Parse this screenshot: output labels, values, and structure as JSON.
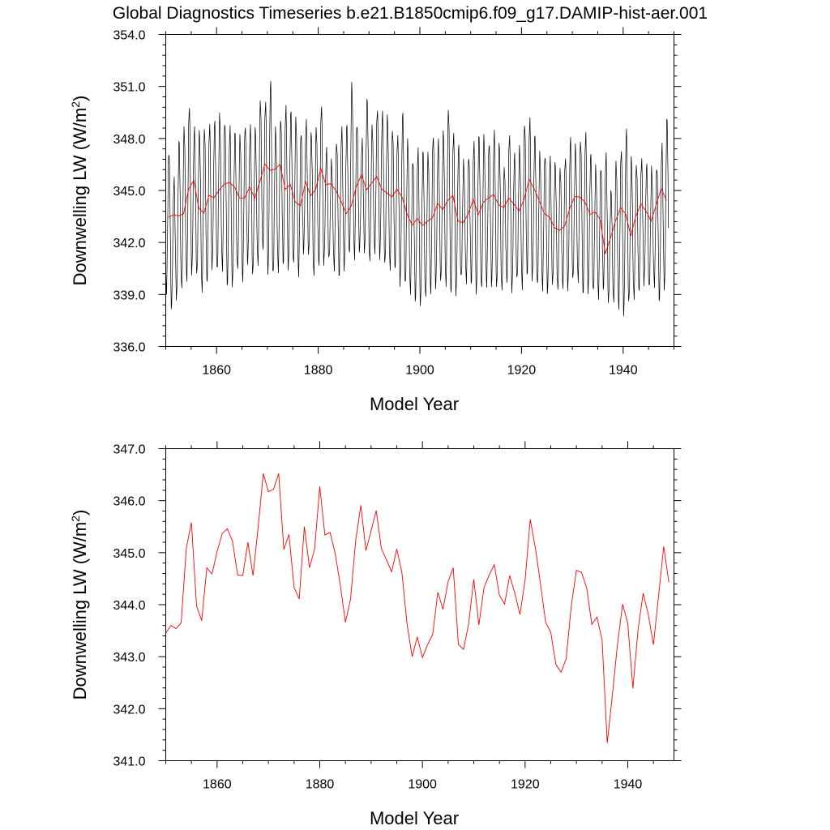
{
  "figure_title": "Global Diagnostics Timeseries b.e21.B1850cmip6.f09_g17.DAMIP-hist-aer.001",
  "colors": {
    "monthly": "#000000",
    "annual": "#ff0000"
  },
  "chart_data": [
    {
      "type": "line",
      "xlabel": "Model Year",
      "ylabel": "Downwelling LW (W/m",
      "ylabel_superscript": "2",
      "ylabel_close": ")",
      "xlim": [
        1850,
        1950
      ],
      "ylim": [
        336.0,
        354.0
      ],
      "x_ticks": [
        "1860",
        "1880",
        "1900",
        "1920",
        "1940"
      ],
      "y_ticks": [
        "336.0",
        "339.0",
        "342.0",
        "345.0",
        "348.0",
        "351.0",
        "354.0"
      ],
      "monthly_amplitude": 3.4,
      "monthly_peaks": [
        347.3,
        345.6,
        347.8,
        348.6,
        349.9,
        348.5,
        348.3,
        348.6,
        348.8,
        348.9,
        349.3,
        349.0,
        348.6,
        348.3,
        348.1,
        348.8,
        348.6,
        348.5,
        350.2,
        350.1,
        351.2,
        348.5,
        349.2,
        349.8,
        349.5,
        349.1,
        348.4,
        348.9,
        348.2,
        348.6,
        349.9,
        347.3,
        346.6,
        347.8,
        348.6,
        348.7,
        351.1,
        348.9,
        347.8,
        350.2,
        348.7,
        349.7,
        349.4,
        349.2,
        348.5,
        348.1,
        349.4,
        347.8,
        346.8,
        347.3,
        347.2,
        347.1,
        348.2,
        347.8,
        348.3,
        349.7,
        348.3,
        347.5,
        346.6,
        347.0,
        347.7,
        348.1,
        348.1,
        347.8,
        348.3,
        347.6,
        346.3,
        348.2,
        347.0,
        347.4,
        348.9,
        349.1,
        348.1,
        347.1,
        347.1,
        346.8,
        346.5,
        346.2,
        346.9,
        347.9,
        347.5,
        347.9,
        348.3,
        347.0,
        346.3,
        346.4,
        347.0,
        344.9,
        346.6,
        347.4,
        348.4,
        346.8,
        346.5,
        346.8,
        346.4,
        346.2,
        346.4,
        347.6,
        349.1
      ],
      "monthly_troughs": [
        339.2,
        338.3,
        338.7,
        339.3,
        339.9,
        340.3,
        340.1,
        339.2,
        339.8,
        340.6,
        340.3,
        340.5,
        339.6,
        339.5,
        340.4,
        339.9,
        340.9,
        340.1,
        340.7,
        341.7,
        340.3,
        340.1,
        340.4,
        340.8,
        340.5,
        340.7,
        340.2,
        341.5,
        341.3,
        340.1,
        340.8,
        340.9,
        341.0,
        340.5,
        340.1,
        340.5,
        341.2,
        341.2,
        341.6,
        341.4,
        340.9,
        341.5,
        341.2,
        340.7,
        340.5,
        340.6,
        339.6,
        339.5,
        339.2,
        338.7,
        338.4,
        338.8,
        339.2,
        339.5,
        339.7,
        339.5,
        339.2,
        339.1,
        339.9,
        339.8,
        339.7,
        339.1,
        339.3,
        339.6,
        339.6,
        339.4,
        339.3,
        339.8,
        339.3,
        339.8,
        339.4,
        340.2,
        339.9,
        339.5,
        339.4,
        339.2,
        339.6,
        339.3,
        339.5,
        339.4,
        339.8,
        339.8,
        339.1,
        339.2,
        339.1,
        338.9,
        339.4,
        338.6,
        338.5,
        338.3,
        337.9,
        338.5,
        338.8,
        339.3,
        339.7,
        339.3,
        339.6,
        338.7,
        339.3
      ],
      "series": [
        {
          "name": "monthly",
          "color": "#000000"
        },
        {
          "name": "annual",
          "color": "#ff0000"
        }
      ]
    },
    {
      "type": "line",
      "xlabel": "Model Year",
      "ylabel": "Downwelling LW (W/m",
      "ylabel_superscript": "2",
      "ylabel_close": ")",
      "xlim": [
        1850,
        1949
      ],
      "ylim": [
        341.0,
        347.0
      ],
      "x_ticks": [
        "1860",
        "1880",
        "1900",
        "1920",
        "1940"
      ],
      "y_ticks": [
        "341.0",
        "342.0",
        "343.0",
        "344.0",
        "345.0",
        "346.0",
        "347.0"
      ],
      "annual_x_start": 1850,
      "annual_values": [
        343.45,
        343.6,
        343.54,
        343.65,
        345.08,
        345.58,
        343.98,
        343.69,
        344.71,
        344.59,
        345.02,
        345.37,
        345.46,
        345.22,
        344.57,
        344.56,
        345.2,
        344.56,
        345.49,
        346.52,
        346.17,
        346.22,
        346.52,
        345.06,
        345.35,
        344.33,
        344.11,
        345.5,
        344.71,
        345.07,
        346.27,
        345.34,
        345.39,
        344.99,
        344.38,
        343.66,
        344.11,
        345.23,
        345.91,
        345.04,
        345.42,
        345.81,
        345.08,
        344.86,
        344.63,
        345.07,
        344.62,
        343.63,
        343.0,
        343.38,
        342.98,
        343.23,
        343.43,
        344.24,
        343.91,
        344.44,
        344.71,
        343.24,
        343.14,
        343.63,
        344.49,
        343.61,
        344.33,
        344.57,
        344.77,
        344.18,
        344.01,
        344.56,
        344.22,
        343.81,
        344.47,
        345.64,
        345.09,
        344.4,
        343.66,
        343.47,
        342.85,
        342.7,
        342.96,
        343.98,
        344.66,
        344.62,
        344.32,
        343.62,
        343.76,
        343.32,
        341.34,
        342.26,
        343.24,
        344.01,
        343.64,
        342.39,
        343.52,
        344.22,
        343.81,
        343.23,
        344.17,
        345.12,
        344.43
      ],
      "series": [
        {
          "name": "annual",
          "color": "#ff0000"
        }
      ]
    }
  ]
}
